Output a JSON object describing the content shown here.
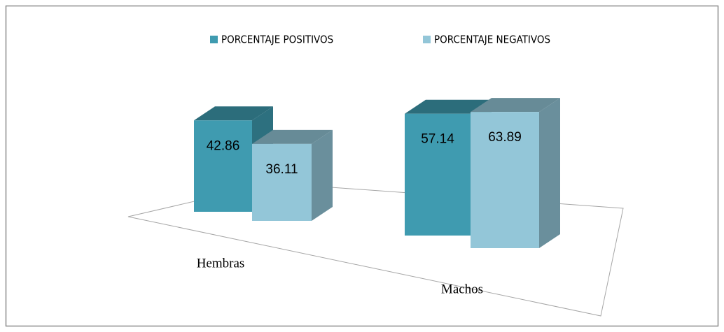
{
  "chart_data": {
    "type": "bar3d",
    "categories": [
      "Hembras",
      "Machos"
    ],
    "series": [
      {
        "name": "PORCENTAJE POSITIVOS",
        "color": "#3f9bb0",
        "values": [
          42.86,
          57.14
        ]
      },
      {
        "name": "PORCENTAJE NEGATIVOS",
        "color": "#93c6d8",
        "values": [
          36.11,
          63.89
        ]
      }
    ],
    "legend": "top"
  }
}
